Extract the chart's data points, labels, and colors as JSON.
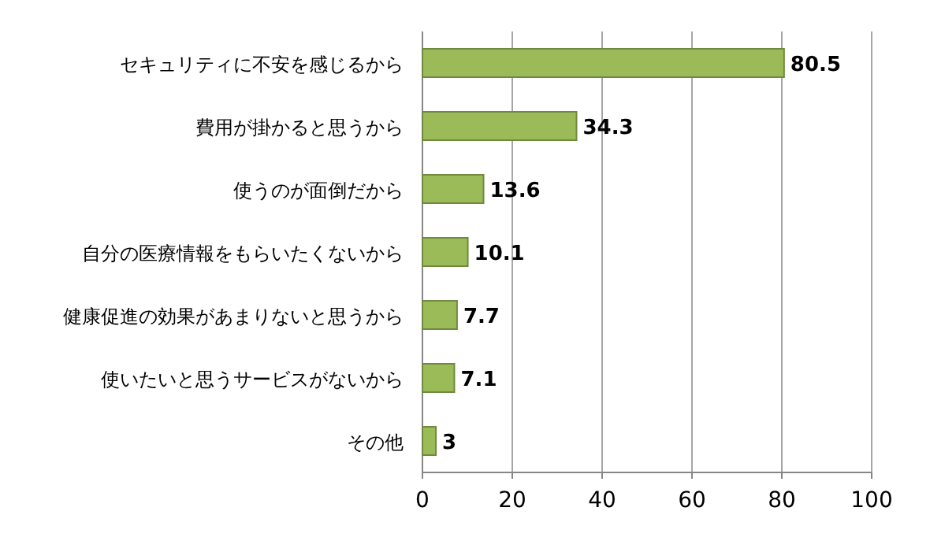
{
  "chart_data": {
    "type": "bar",
    "orientation": "horizontal",
    "categories": [
      "セキュリティに不安を感じるから",
      "費用が掛かると思うから",
      "使うのが面倒だから",
      "自分の医療情報をもらいたくないから",
      "健康促進の効果があまりないと思うから",
      "使いたいと思うサービスがないから",
      "その他"
    ],
    "values": [
      80.5,
      34.3,
      13.6,
      10.1,
      7.7,
      7.1,
      3
    ],
    "color": "#9bbb59",
    "xlim": [
      0,
      100
    ],
    "xticks": [
      0,
      20,
      40,
      60,
      80,
      100
    ],
    "grid": "x",
    "data_labels": true
  }
}
